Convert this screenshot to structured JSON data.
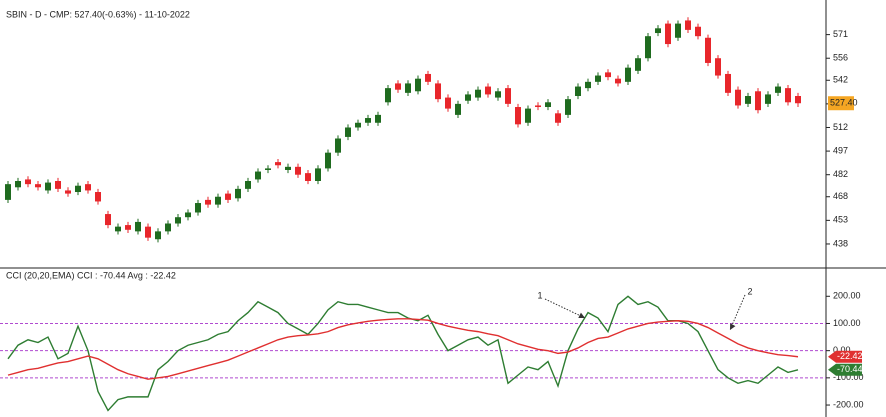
{
  "chart_data": [
    {
      "type": "candlestick",
      "title": "SBIN - D - CMP: 527.40(-0.63%) - 11-10-2022",
      "open": [
        466,
        474,
        479,
        476,
        472,
        478,
        472,
        471,
        476,
        471,
        457,
        446,
        450,
        446,
        449,
        441,
        446,
        451,
        455,
        458,
        466,
        463,
        470,
        467,
        473,
        479,
        485,
        490,
        485,
        487,
        483,
        478,
        486,
        496,
        506,
        512,
        515,
        515,
        528,
        540,
        534,
        535,
        546,
        540,
        531,
        520,
        529,
        531,
        538,
        531,
        537,
        525,
        515,
        526,
        525,
        521,
        520,
        532,
        537,
        541,
        547,
        543,
        541,
        548,
        556,
        572,
        578,
        569,
        580,
        576,
        569,
        556,
        546,
        536,
        527,
        535,
        527,
        534,
        537,
        532
      ],
      "high": [
        478,
        480,
        481,
        478,
        479,
        480,
        474,
        477,
        478,
        473,
        459,
        451,
        452,
        454,
        451,
        448,
        453,
        457,
        460,
        466,
        468,
        470,
        472,
        475,
        480,
        486,
        488,
        492,
        489,
        489,
        485,
        488,
        498,
        507,
        514,
        517,
        520,
        522,
        539,
        542,
        542,
        545,
        548,
        542,
        533,
        529,
        535,
        538,
        540,
        537,
        539,
        527,
        526,
        528,
        530,
        523,
        532,
        540,
        543,
        547,
        549,
        545,
        552,
        558,
        572,
        577,
        580,
        580,
        582,
        578,
        571,
        558,
        548,
        538,
        534,
        537,
        535,
        540,
        539,
        534
      ],
      "low": [
        464,
        472,
        474,
        472,
        470,
        471,
        468,
        469,
        470,
        463,
        448,
        444,
        445,
        444,
        440,
        439,
        444,
        449,
        453,
        456,
        461,
        461,
        464,
        465,
        471,
        477,
        483,
        486,
        483,
        480,
        476,
        476,
        484,
        494,
        504,
        510,
        513,
        513,
        526,
        534,
        532,
        533,
        539,
        528,
        522,
        518,
        527,
        529,
        531,
        529,
        525,
        512,
        513,
        523,
        523,
        513,
        518,
        530,
        535,
        539,
        542,
        538,
        539,
        546,
        554,
        570,
        563,
        567,
        572,
        568,
        551,
        543,
        532,
        524,
        525,
        521,
        525,
        532,
        526,
        525
      ],
      "close": [
        476,
        478,
        476,
        474,
        477,
        473,
        470,
        475,
        472,
        465,
        450,
        449,
        447,
        452,
        442,
        446,
        451,
        455,
        458,
        464,
        463,
        468,
        466,
        473,
        478,
        484,
        486,
        488,
        487,
        482,
        478,
        486,
        496,
        505,
        512,
        515,
        518,
        520,
        537,
        536,
        540,
        543,
        541,
        530,
        524,
        527,
        533,
        536,
        533,
        535,
        527,
        514,
        524,
        525,
        528,
        515,
        530,
        538,
        541,
        545,
        544,
        540,
        550,
        556,
        570,
        575,
        565,
        578,
        574,
        570,
        553,
        545,
        534,
        526,
        532,
        523,
        533,
        538,
        528,
        527.4
      ],
      "up_color": "#1f6b1f",
      "down_color": "#e8262b",
      "price_tag": "527.40",
      "ylim": [
        424,
        586
      ],
      "yticks": [
        438,
        453,
        468,
        482,
        497,
        512,
        527,
        542,
        556,
        571
      ]
    },
    {
      "type": "line",
      "title": "CCI (20,20,EMA) CCI : -70.44 Avg : -22.42",
      "series": [
        {
          "color": "#2e7d32",
          "tag": "-70.44",
          "values": [
            -30,
            20,
            40,
            30,
            50,
            -30,
            -10,
            90,
            0,
            -150,
            -220,
            -180,
            -170,
            -170,
            -170,
            -70,
            -40,
            0,
            20,
            30,
            40,
            60,
            70,
            110,
            140,
            180,
            160,
            140,
            100,
            80,
            60,
            100,
            150,
            180,
            170,
            170,
            160,
            150,
            140,
            140,
            120,
            110,
            130,
            60,
            0,
            20,
            40,
            50,
            20,
            40,
            -120,
            -90,
            -60,
            -70,
            -40,
            -130,
            0,
            80,
            140,
            120,
            70,
            170,
            200,
            170,
            180,
            160,
            110,
            110,
            100,
            70,
            0,
            -70,
            -100,
            -120,
            -110,
            -120,
            -90,
            -60,
            -80,
            -70.44
          ]
        },
        {
          "color": "#e03030",
          "tag": "-22.42",
          "values": [
            -90,
            -80,
            -70,
            -65,
            -55,
            -45,
            -40,
            -30,
            -20,
            -30,
            -50,
            -70,
            -85,
            -95,
            -105,
            -100,
            -95,
            -85,
            -75,
            -65,
            -55,
            -45,
            -35,
            -20,
            -5,
            10,
            25,
            40,
            50,
            55,
            58,
            62,
            70,
            85,
            95,
            102,
            108,
            112,
            115,
            117,
            117,
            115,
            112,
            100,
            90,
            82,
            75,
            70,
            62,
            55,
            40,
            25,
            15,
            5,
            0,
            -10,
            -5,
            10,
            30,
            45,
            50,
            65,
            80,
            90,
            100,
            105,
            108,
            110,
            108,
            100,
            85,
            65,
            45,
            25,
            10,
            0,
            -8,
            -15,
            -18,
            -22.42
          ]
        }
      ],
      "guide_lines": [
        100,
        0,
        -100
      ],
      "annotations": [
        {
          "text": "1"
        },
        {
          "text": "2"
        }
      ],
      "ylim": [
        -244,
        304
      ],
      "yticks": [
        {
          "value": 200,
          "label": "200.00"
        },
        {
          "value": 100,
          "label": "100.00"
        },
        {
          "value": 0,
          "label": "0.00"
        },
        {
          "value": -100,
          "label": "-100.00"
        },
        {
          "value": -200,
          "label": "-200.00"
        }
      ]
    }
  ]
}
